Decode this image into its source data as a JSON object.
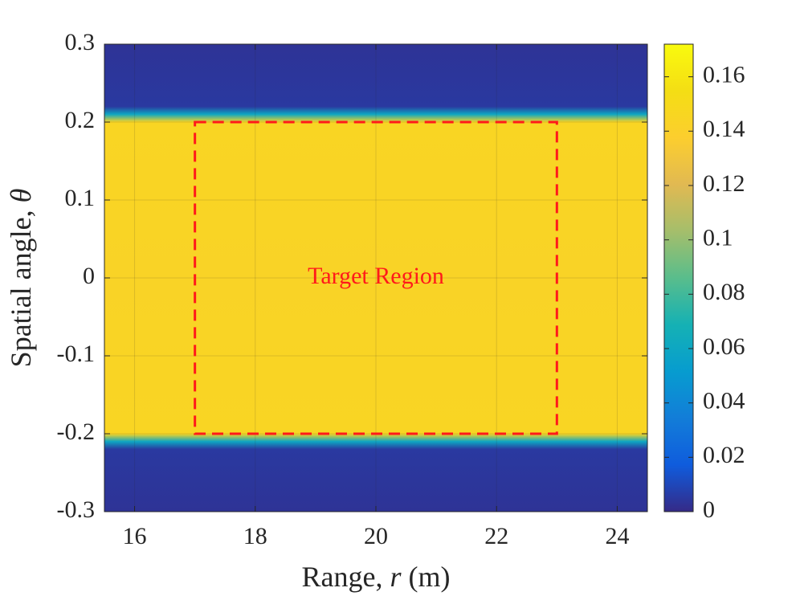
{
  "chart_data": {
    "type": "heatmap",
    "title": "",
    "xlabel": {
      "prefix": "Range, ",
      "var": "r",
      "suffix": " (m)"
    },
    "ylabel": {
      "prefix": "Spatial angle, ",
      "var": "θ"
    },
    "xlim": [
      15.5,
      24.5
    ],
    "ylim": [
      -0.3,
      0.3
    ],
    "xticks": [
      16,
      18,
      20,
      22,
      24
    ],
    "xtick_labels": [
      "16",
      "18",
      "20",
      "22",
      "24"
    ],
    "yticks": [
      0.3,
      0.2,
      0.1,
      0,
      -0.1,
      -0.2,
      -0.3
    ],
    "ytick_labels": [
      "0.3",
      "0.2",
      "0.1",
      "0",
      "-0.1",
      "-0.2",
      "-0.3"
    ],
    "grid": true,
    "field": {
      "description_value_profile_vs_theta": [
        {
          "theta": 0.3,
          "value": 0.003
        },
        {
          "theta": 0.22,
          "value": 0.005
        },
        {
          "theta": 0.21,
          "value": 0.06
        },
        {
          "theta": 0.2,
          "value": 0.145
        },
        {
          "theta": 0.0,
          "value": 0.143
        },
        {
          "theta": -0.2,
          "value": 0.145
        },
        {
          "theta": -0.21,
          "value": 0.06
        },
        {
          "theta": -0.22,
          "value": 0.005
        },
        {
          "theta": -0.3,
          "value": 0.003
        }
      ]
    },
    "colorbar": {
      "range": [
        0,
        0.172
      ],
      "ticks": [
        0,
        0.02,
        0.04,
        0.06,
        0.08,
        0.1,
        0.12,
        0.14,
        0.16
      ],
      "tick_labels": [
        "0",
        "0.02",
        "0.04",
        "0.06",
        "0.08",
        "0.1",
        "0.12",
        "0.14",
        "0.16"
      ],
      "colormap": "parula"
    },
    "annotation": {
      "text": "Target Region",
      "x": 20,
      "y": 0,
      "color": "#ff1a1a"
    },
    "target_region": {
      "x_range": [
        17,
        23
      ],
      "y_range": [
        -0.2,
        0.2
      ],
      "color": "#ff1a1a",
      "style": "dashed"
    }
  },
  "colors": {
    "background": "#ffffff",
    "axis": "#262626",
    "grid": "#262626"
  }
}
